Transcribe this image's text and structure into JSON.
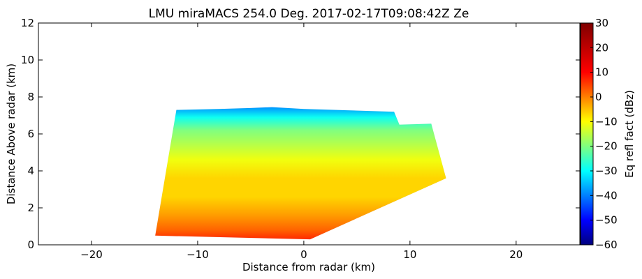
{
  "chart_data": {
    "type": "heatmap",
    "title": "LMU miraMACS 254.0 Deg. 2017-02-17T09:08:42Z  Ze",
    "xlabel": "Distance from radar (km)",
    "ylabel": "Distance Above radar  (km)",
    "xlim": [
      -25,
      26
    ],
    "ylim": [
      0,
      12
    ],
    "x_ticks": [
      -20,
      -10,
      0,
      10,
      20
    ],
    "y_ticks": [
      0,
      2,
      4,
      6,
      8,
      10,
      12
    ],
    "grid": false,
    "colorbar": {
      "label": "Eq refl fact (dBz)",
      "range": [
        -60,
        30
      ],
      "ticks": [
        -60,
        -50,
        -40,
        -30,
        -20,
        -10,
        0,
        10,
        20,
        30
      ],
      "colormap": "jet"
    },
    "scan_sector": {
      "outline_km": [
        [
          -14,
          0.5
        ],
        [
          -12,
          7.3
        ],
        [
          -8,
          7.35
        ],
        [
          -5,
          7.4
        ],
        [
          -3,
          7.45
        ],
        [
          0,
          7.35
        ],
        [
          3,
          7.3
        ],
        [
          8.5,
          7.2
        ],
        [
          9,
          6.5
        ],
        [
          12,
          6.55
        ],
        [
          13.4,
          3.6
        ],
        [
          0.6,
          0.3
        ]
      ],
      "echo_top_km": 7.3,
      "profile": [
        {
          "height_km": 0.3,
          "dbz": 15
        },
        {
          "height_km": 0.8,
          "dbz": 10
        },
        {
          "height_km": 1.6,
          "dbz": 5
        },
        {
          "height_km": 2.6,
          "dbz": 0
        },
        {
          "height_km": 3.6,
          "dbz": 0
        },
        {
          "height_km": 4.6,
          "dbz": -5
        },
        {
          "height_km": 5.4,
          "dbz": -10
        },
        {
          "height_km": 6.2,
          "dbz": -15
        },
        {
          "height_km": 6.9,
          "dbz": -25
        },
        {
          "height_km": 7.4,
          "dbz": -35
        }
      ]
    }
  }
}
